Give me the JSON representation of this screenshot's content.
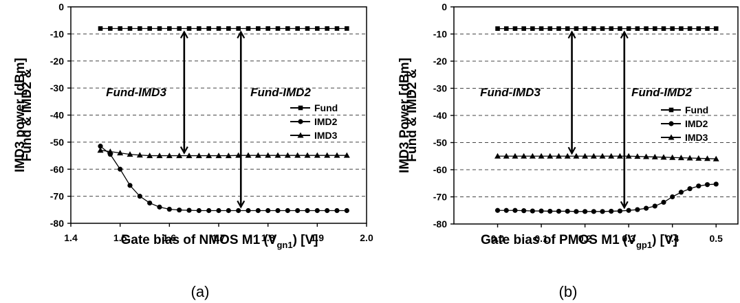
{
  "chart_data": [
    {
      "type": "line",
      "panel_label": "(a)",
      "ylabel_lines": [
        "Fund & IMD2 &",
        "IMD3 power [dBm]"
      ],
      "xlabel": {
        "before": "Gate bias of NMOS M1 (V",
        "subscript": "gn1",
        "after": ") [V]"
      },
      "xlim": [
        1.4,
        2.0
      ],
      "ylim": [
        -80,
        0
      ],
      "xticks": [
        "1.4",
        "1.5",
        "1.6",
        "1.7",
        "1.8",
        "1.9",
        "2.0"
      ],
      "yticks": [
        "0",
        "-10",
        "-20",
        "-30",
        "-40",
        "-50",
        "-60",
        "-70",
        "-80"
      ],
      "grid": "dashed horizontal",
      "legend_position": "right",
      "annotations": [
        {
          "text": "Fund-IMD3",
          "x": 1.63,
          "y_from": -8,
          "y_to": -55
        },
        {
          "text": "Fund-IMD2",
          "x": 1.745,
          "y_from": -8,
          "y_to": -75
        }
      ],
      "series": [
        {
          "name": "Fund",
          "marker": "square",
          "x": [
            1.46,
            1.48,
            1.5,
            1.52,
            1.54,
            1.56,
            1.58,
            1.6,
            1.62,
            1.64,
            1.66,
            1.68,
            1.7,
            1.72,
            1.74,
            1.76,
            1.78,
            1.8,
            1.82,
            1.84,
            1.86,
            1.88,
            1.9,
            1.92,
            1.94,
            1.96
          ],
          "y": [
            -8,
            -8,
            -8,
            -8,
            -8,
            -8,
            -8,
            -8,
            -8,
            -8,
            -8,
            -8,
            -8,
            -8,
            -8,
            -8,
            -8,
            -8,
            -8,
            -8,
            -8,
            -8,
            -8,
            -8,
            -8,
            -8
          ]
        },
        {
          "name": "IMD2",
          "marker": "circle",
          "x": [
            1.46,
            1.48,
            1.5,
            1.52,
            1.54,
            1.56,
            1.58,
            1.6,
            1.62,
            1.64,
            1.66,
            1.68,
            1.7,
            1.72,
            1.74,
            1.76,
            1.78,
            1.8,
            1.82,
            1.84,
            1.86,
            1.88,
            1.9,
            1.92,
            1.94,
            1.96
          ],
          "y": [
            -51.5,
            -54.5,
            -60,
            -66,
            -70,
            -72.5,
            -74,
            -74.8,
            -75.1,
            -75.2,
            -75.3,
            -75.3,
            -75.3,
            -75.3,
            -75.3,
            -75.3,
            -75.3,
            -75.3,
            -75.3,
            -75.3,
            -75.3,
            -75.3,
            -75.3,
            -75.3,
            -75.3,
            -75.3
          ]
        },
        {
          "name": "IMD3",
          "marker": "triangle",
          "x": [
            1.46,
            1.48,
            1.5,
            1.52,
            1.54,
            1.56,
            1.58,
            1.6,
            1.62,
            1.64,
            1.66,
            1.68,
            1.7,
            1.72,
            1.74,
            1.76,
            1.78,
            1.8,
            1.82,
            1.84,
            1.86,
            1.88,
            1.9,
            1.92,
            1.94,
            1.96
          ],
          "y": [
            -53,
            -53.5,
            -54,
            -54.5,
            -54.8,
            -55,
            -55,
            -55,
            -55,
            -55,
            -55,
            -55,
            -55,
            -55,
            -54.9,
            -54.9,
            -54.9,
            -54.9,
            -54.9,
            -54.9,
            -54.9,
            -54.9,
            -54.9,
            -54.9,
            -54.9,
            -54.9
          ]
        }
      ]
    },
    {
      "type": "line",
      "panel_label": "(b)",
      "ylabel_lines": [
        "Fund & IMD2 &",
        "IMD3 Power [dBm]"
      ],
      "xlabel": {
        "before": "Gate bias of PMOS M1 (V",
        "subscript": "gp1",
        "after": ") [V]"
      },
      "xlim": [
        -0.1,
        0.55
      ],
      "ylim": [
        -80,
        0
      ],
      "xticks": [
        "0.0",
        "0.1",
        "0.2",
        "0.3",
        "0.4",
        "0.5"
      ],
      "yticks": [
        "0",
        "-10",
        "-20",
        "-30",
        "-40",
        "-50",
        "-60",
        "-70",
        "-80"
      ],
      "grid": "dashed horizontal",
      "legend_position": "right",
      "annotations": [
        {
          "text": "Fund-IMD3",
          "x": 0.17,
          "y_from": -8,
          "y_to": -55
        },
        {
          "text": "Fund-IMD2",
          "x": 0.29,
          "y_from": -8,
          "y_to": -75
        }
      ],
      "series": [
        {
          "name": "Fund",
          "marker": "square",
          "x": [
            0.0,
            0.02,
            0.04,
            0.06,
            0.08,
            0.1,
            0.12,
            0.14,
            0.16,
            0.18,
            0.2,
            0.22,
            0.24,
            0.26,
            0.28,
            0.3,
            0.32,
            0.34,
            0.36,
            0.38,
            0.4,
            0.42,
            0.44,
            0.46,
            0.48,
            0.5
          ],
          "y": [
            -8,
            -8,
            -8,
            -8,
            -8,
            -8,
            -8,
            -8,
            -8,
            -8,
            -8,
            -8,
            -8,
            -8,
            -8,
            -8,
            -8,
            -8,
            -8,
            -8,
            -8,
            -8,
            -8,
            -8,
            -8,
            -8
          ]
        },
        {
          "name": "IMD2",
          "marker": "circle",
          "x": [
            0.0,
            0.02,
            0.04,
            0.06,
            0.08,
            0.1,
            0.12,
            0.14,
            0.16,
            0.18,
            0.2,
            0.22,
            0.24,
            0.26,
            0.28,
            0.3,
            0.32,
            0.34,
            0.36,
            0.38,
            0.4,
            0.42,
            0.44,
            0.46,
            0.48,
            0.5
          ],
          "y": [
            -75,
            -75,
            -75,
            -75.1,
            -75.2,
            -75.2,
            -75.3,
            -75.3,
            -75.3,
            -75.4,
            -75.4,
            -75.4,
            -75.4,
            -75.3,
            -75.2,
            -75,
            -74.7,
            -74.2,
            -73.4,
            -72,
            -70,
            -68.3,
            -67,
            -66,
            -65.5,
            -65.3
          ]
        },
        {
          "name": "IMD3",
          "marker": "triangle",
          "x": [
            0.0,
            0.02,
            0.04,
            0.06,
            0.08,
            0.1,
            0.12,
            0.14,
            0.16,
            0.18,
            0.2,
            0.22,
            0.24,
            0.26,
            0.28,
            0.3,
            0.32,
            0.34,
            0.36,
            0.38,
            0.4,
            0.42,
            0.44,
            0.46,
            0.48,
            0.5
          ],
          "y": [
            -55,
            -55,
            -55,
            -55,
            -55,
            -55,
            -55,
            -55,
            -55,
            -55,
            -55,
            -55,
            -55,
            -55,
            -55,
            -55,
            -55.1,
            -55.2,
            -55.3,
            -55.4,
            -55.5,
            -55.6,
            -55.7,
            -55.8,
            -55.9,
            -56
          ]
        }
      ]
    }
  ]
}
